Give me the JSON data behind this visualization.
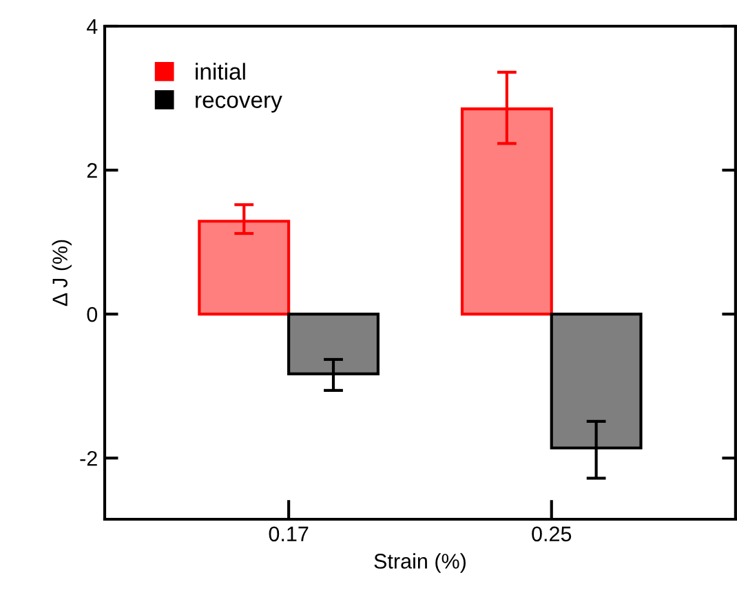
{
  "chart_data": {
    "type": "bar",
    "xlabel": "Strain (%)",
    "ylabel": "Δ J (%)",
    "categories": [
      "0.17",
      "0.25"
    ],
    "series": [
      {
        "name": "initial",
        "color": "#ff0000",
        "values": [
          1.29,
          2.85
        ],
        "errors": [
          [
            1.12,
            1.52
          ],
          [
            2.37,
            3.36
          ]
        ]
      },
      {
        "name": "recovery",
        "color": "#000000",
        "values": [
          -0.83,
          -1.86
        ],
        "errors": [
          [
            -1.06,
            -0.63
          ],
          [
            -2.28,
            -1.49
          ]
        ]
      }
    ],
    "ylim": [
      -2.85,
      4
    ],
    "yticks": [
      -2,
      0,
      2,
      4
    ],
    "grid": false,
    "legend": "top left"
  }
}
